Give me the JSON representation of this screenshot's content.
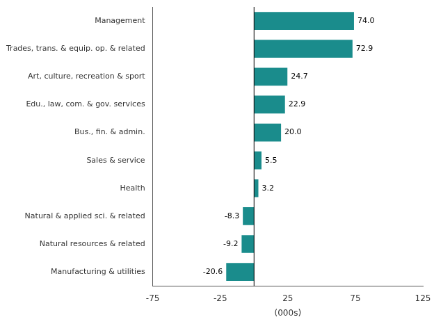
{
  "chart_data": {
    "type": "bar",
    "orientation": "horizontal",
    "categories": [
      "Manufacturing & utilities",
      "Natural resources & related",
      "Natural & applied sci. & related",
      "Health",
      "Sales & service",
      "Bus., fin. & admin.",
      "Edu., law, com. & gov. services",
      "Art, culture, recreation & sport",
      "Trades, trans. & equip. op. & related",
      "Management"
    ],
    "values": [
      -20.6,
      -9.2,
      -8.3,
      3.2,
      5.5,
      20.0,
      22.9,
      24.7,
      72.9,
      74.0
    ],
    "value_labels": [
      "-20.6",
      "-9.2",
      "-8.3",
      "3.2",
      "5.5",
      "20.0",
      "22.9",
      "24.7",
      "72.9",
      "74.0"
    ],
    "data_labels": true,
    "color": "#1a8c8c",
    "xlabel": "(000s)",
    "xlim": [
      -75,
      125
    ],
    "xticks": [
      -75,
      -25,
      25,
      75,
      125
    ],
    "grid": false
  }
}
